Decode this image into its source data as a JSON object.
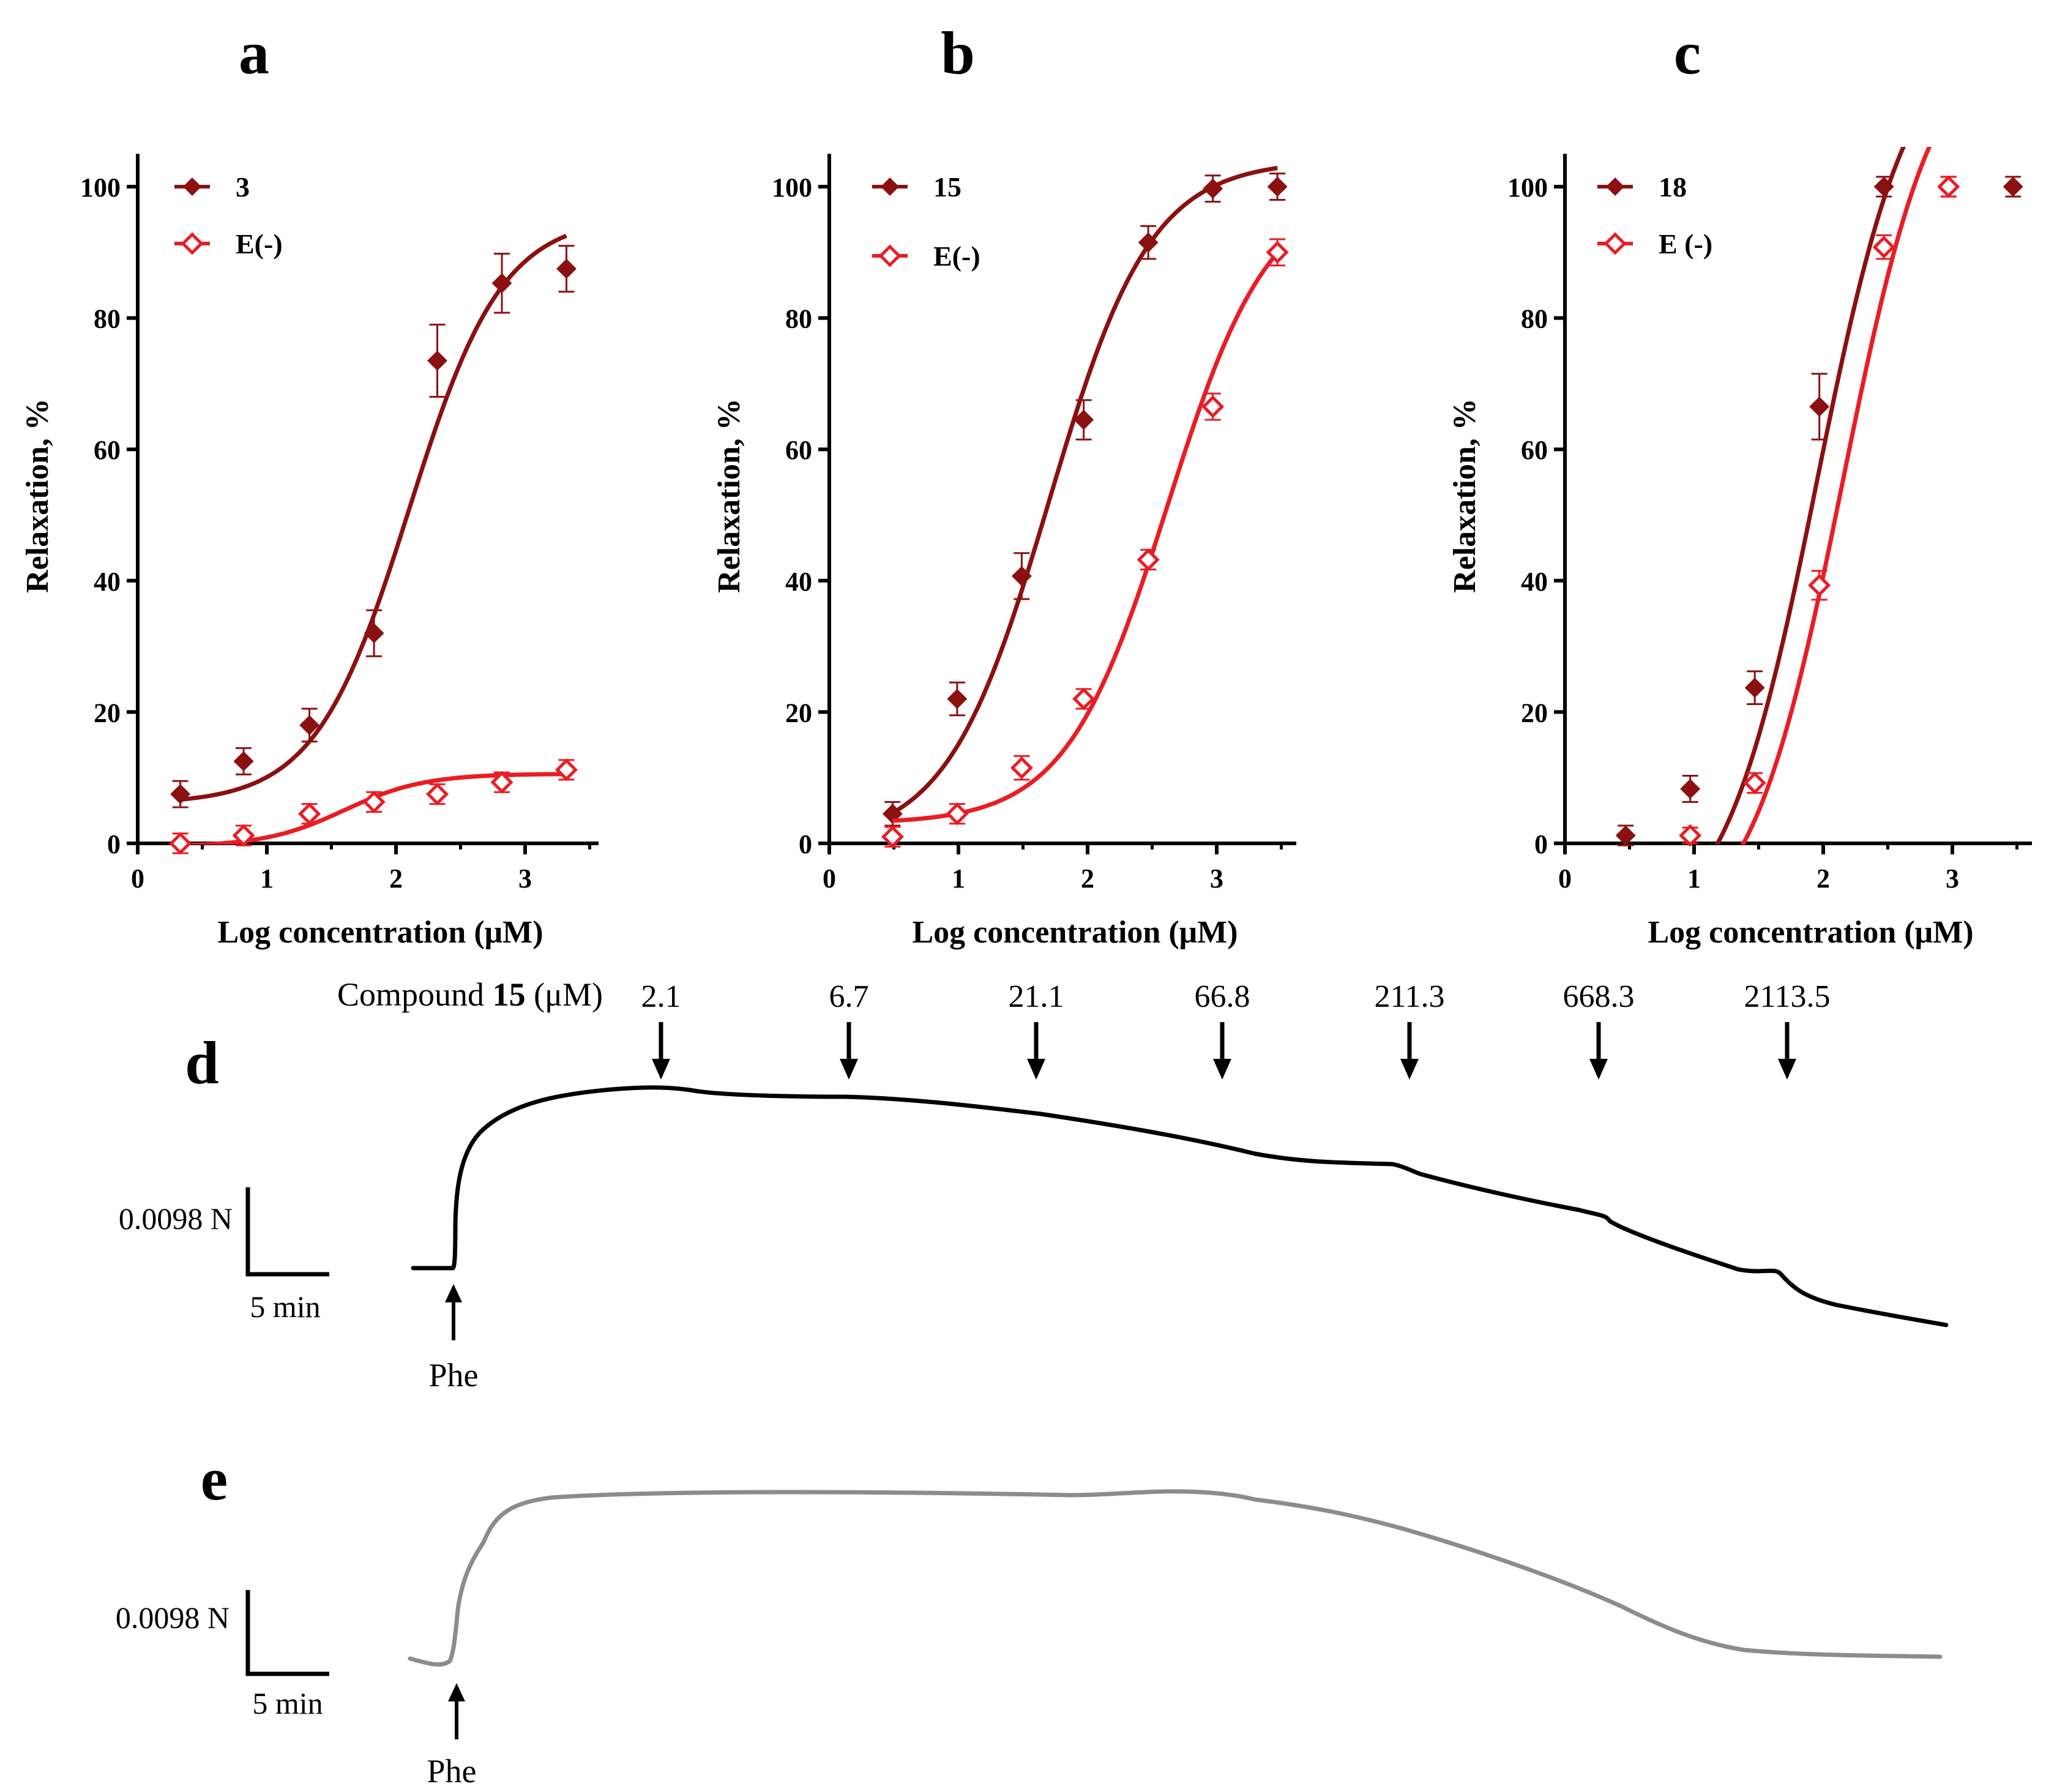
{
  "colors": {
    "dark_red": "#8b1010",
    "red": "#ea1c24",
    "black": "#000000",
    "gray": "#8c8c8c"
  },
  "chart_data": [
    {
      "panel": "a",
      "type": "scatter",
      "xlabel": "Log concentration (μM)",
      "ylabel": "Relaxation, %",
      "xlim": [
        0,
        3.6
      ],
      "ylim": [
        0,
        105
      ],
      "xticks": [
        "0",
        "1",
        "2",
        "3"
      ],
      "yticks": [
        "0",
        "20",
        "40",
        "60",
        "80",
        "100"
      ],
      "series": [
        {
          "name": "3",
          "color": "#8b1010",
          "marker": "filled-diamond",
          "x": [
            0.33,
            0.82,
            1.33,
            1.83,
            2.32,
            2.82,
            3.32
          ],
          "y": [
            7.5,
            12.5,
            18,
            32,
            73.5,
            85.3,
            87.5
          ],
          "err": [
            2,
            2,
            2.5,
            3.5,
            5.5,
            4.5,
            3.5
          ],
          "fit": {
            "bottom": 6,
            "top": 95.5,
            "logEC50": 2.1,
            "hill": 1.2,
            "from": 0.33,
            "to": 3.32
          }
        },
        {
          "name": "E(-)",
          "color": "#ea1c24",
          "marker": "open-diamond",
          "x": [
            0.33,
            0.82,
            1.33,
            1.83,
            2.32,
            2.82,
            3.32
          ],
          "y": [
            0,
            1.2,
            4.5,
            6.3,
            7.5,
            9.3,
            11.2
          ],
          "err": [
            1.5,
            1.5,
            1.5,
            1.5,
            1.5,
            1.5,
            1.5
          ],
          "fit": {
            "bottom": -0.5,
            "top": 10.6,
            "logEC50": 1.6,
            "hill": 1.4,
            "from": 0.33,
            "to": 3.32
          }
        }
      ]
    },
    {
      "panel": "b",
      "type": "scatter",
      "xlabel": "Log concentration (μM)",
      "ylabel": "Relaxation, %",
      "xlim": [
        0,
        3.6
      ],
      "ylim": [
        0,
        105
      ],
      "xticks": [
        "0",
        "1",
        "2",
        "3"
      ],
      "yticks": [
        "0",
        "20",
        "40",
        "60",
        "80",
        "100"
      ],
      "series": [
        {
          "name": "15",
          "color": "#8b1010",
          "marker": "filled-diamond",
          "x": [
            0.49,
            0.99,
            1.49,
            1.97,
            2.47,
            2.97,
            3.47
          ],
          "y": [
            4.5,
            22,
            40.7,
            64.5,
            91.5,
            99.7,
            100
          ],
          "err": [
            1.8,
            2.5,
            3.5,
            3,
            2.5,
            2,
            2
          ],
          "fit": {
            "bottom": 0,
            "top": 104,
            "logEC50": 1.7,
            "hill": 1.1,
            "from": 0.49,
            "to": 3.47
          }
        },
        {
          "name": "E(-)",
          "color": "#ea1c24",
          "marker": "open-diamond",
          "x": [
            0.49,
            0.99,
            1.49,
            1.97,
            2.47,
            2.97,
            3.47
          ],
          "y": [
            1,
            4.5,
            11.5,
            22,
            43.2,
            66.5,
            90
          ],
          "err": [
            1.5,
            1.5,
            1.8,
            1.5,
            1.5,
            2,
            2
          ],
          "fit": {
            "bottom": 3,
            "top": 100,
            "logEC50": 2.62,
            "hill": 1.1,
            "from": 0.49,
            "to": 3.47
          }
        }
      ]
    },
    {
      "panel": "c",
      "type": "scatter",
      "xlabel": "Log concentration (μM)",
      "ylabel": "Relaxation, %",
      "xlim": [
        0,
        3.6
      ],
      "ylim": [
        0,
        105
      ],
      "xticks": [
        "0",
        "1",
        "2",
        "3"
      ],
      "yticks": [
        "0",
        "20",
        "40",
        "60",
        "80",
        "100"
      ],
      "series": [
        {
          "name": "18",
          "color": "#8b1010",
          "marker": "filled-diamond",
          "x": [
            0.47,
            0.97,
            1.47,
            1.97,
            2.47,
            2.97,
            3.47
          ],
          "y": [
            1.2,
            8.3,
            23.7,
            66.5,
            100,
            100,
            100
          ],
          "err": [
            1.5,
            2,
            2.5,
            5,
            1.5,
            1.5,
            1.5
          ],
          "fit": {
            "bottom": -15,
            "top": 125,
            "logEC50": 1.95,
            "hill": 1.2,
            "from": 0.65,
            "to": 3.32
          }
        },
        {
          "name": "E (-)",
          "color": "#ea1c24",
          "marker": "open-diamond",
          "x": [
            0.97,
            1.47,
            1.97,
            2.47,
            2.97
          ],
          "y": [
            1.2,
            9.2,
            39.3,
            90.8,
            100
          ],
          "err": [
            1.2,
            1.5,
            2.2,
            1.8,
            1.5
          ],
          "fit": {
            "bottom": -15,
            "top": 125,
            "logEC50": 2.15,
            "hill": 1.2,
            "from": 1.0,
            "to": 3.32
          }
        }
      ]
    }
  ],
  "traces": {
    "d": {
      "label": "d",
      "compound_prefix": "Compound",
      "compound_number": "15",
      "compound_unit": "(μM)",
      "doses": [
        "2.1",
        "6.7",
        "21.1",
        "66.8",
        "211.3",
        "668.3",
        "2113.5"
      ],
      "scale_force": "0.0098 N",
      "scale_time": "5 min",
      "agonist": "Phe"
    },
    "e": {
      "label": "e",
      "scale_force": "0.0098 N",
      "scale_time": "5 min",
      "agonist": "Phe"
    }
  }
}
